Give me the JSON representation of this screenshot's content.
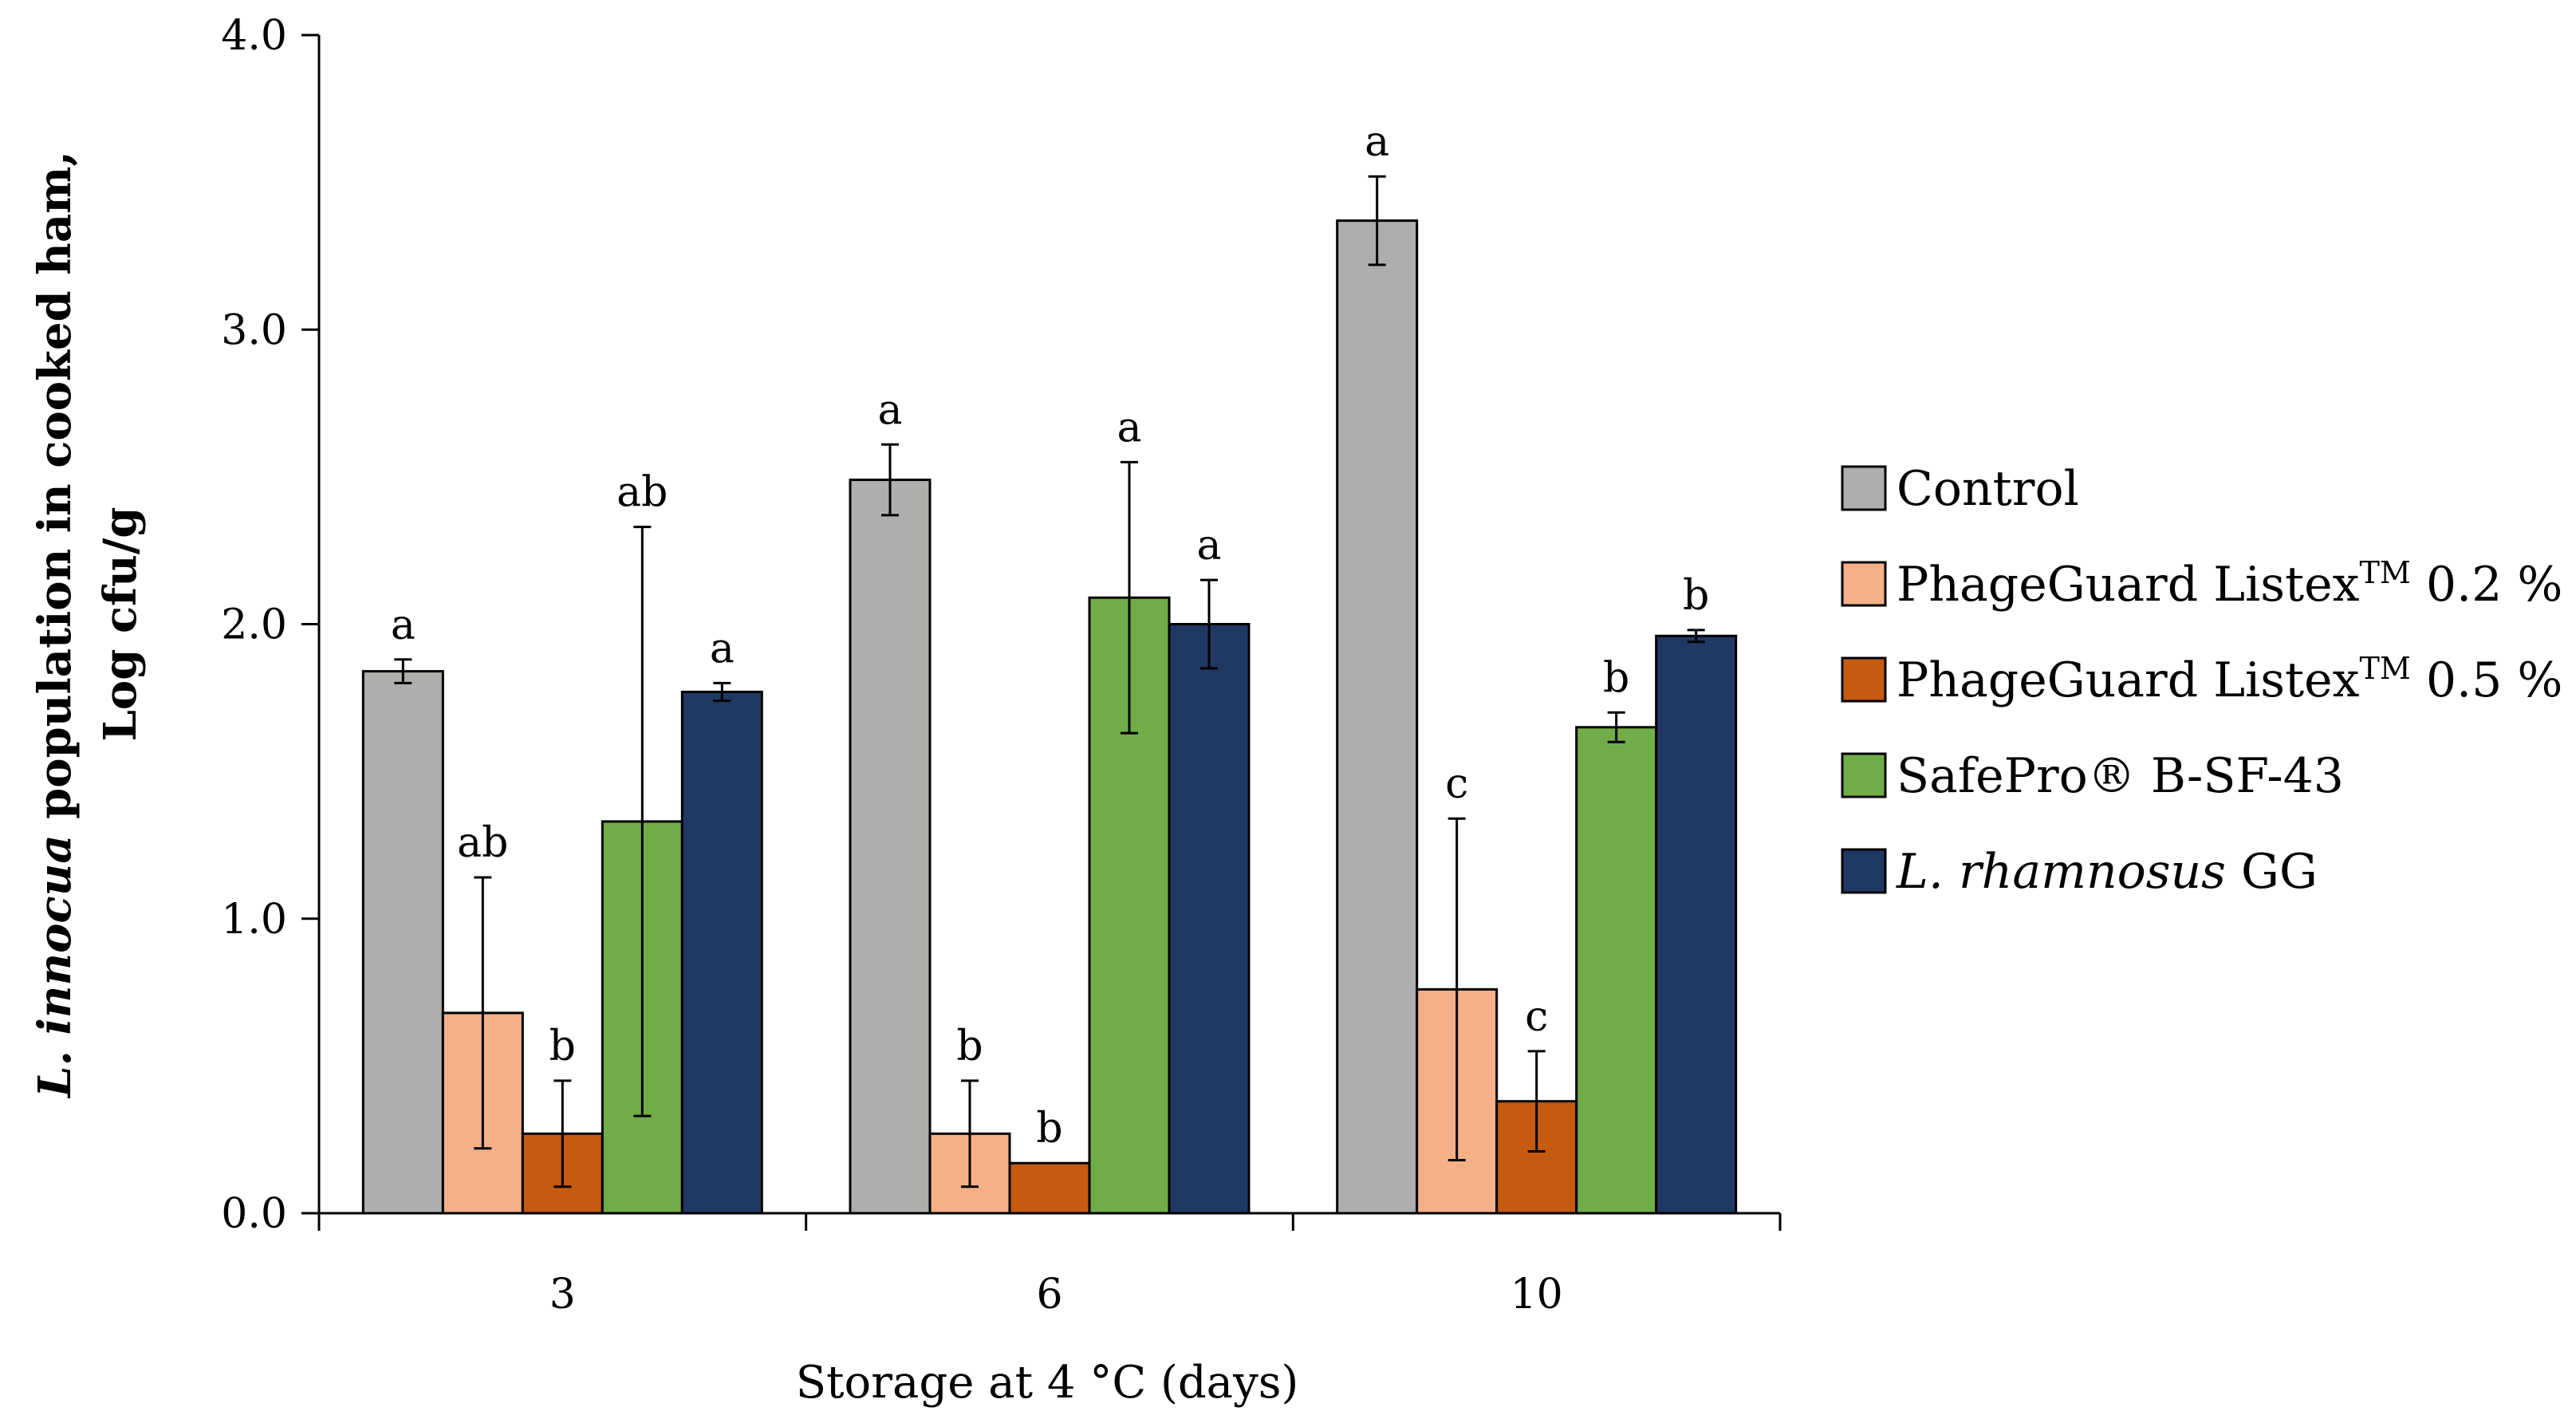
{
  "chart_data": {
    "type": "bar",
    "xlabel": "Storage at 4 °C (days)",
    "ylabel_lines": [
      {
        "italic": "L. innocua",
        "rest": " population in cooked ham,"
      },
      {
        "italic": "",
        "rest": "Log cfu/g"
      }
    ],
    "ylim": [
      0.0,
      4.0
    ],
    "yticks": [
      0.0,
      1.0,
      2.0,
      3.0,
      4.0
    ],
    "ytick_labels": [
      "0.0",
      "1.0",
      "2.0",
      "3.0",
      "4.0"
    ],
    "categories": [
      "3",
      "6",
      "10"
    ],
    "legend_position": "right",
    "series": [
      {
        "name": "Control",
        "legend_parts": [
          {
            "t": "Control",
            "s": "n"
          }
        ],
        "color": "#b0aeac",
        "values": [
          1.84,
          2.49,
          3.37
        ],
        "errors": [
          0.04,
          0.12,
          0.15
        ],
        "letters": [
          "a",
          "a",
          "a"
        ]
      },
      {
        "name": "PhageGuard Listex™ 0.2 %",
        "legend_parts": [
          {
            "t": "PhageGuard Listex",
            "s": "n"
          },
          {
            "t": "TM",
            "s": "sup"
          },
          {
            "t": " 0.2 %",
            "s": "n"
          }
        ],
        "color": "#f5b088",
        "values": [
          0.68,
          0.27,
          0.76
        ],
        "errors": [
          0.46,
          0.18,
          0.58
        ],
        "letters": [
          "ab",
          "b",
          "c"
        ]
      },
      {
        "name": "PhageGuard Listex™ 0.5 %",
        "legend_parts": [
          {
            "t": "PhageGuard Listex",
            "s": "n"
          },
          {
            "t": "TM",
            "s": "sup"
          },
          {
            "t": " 0.5 %",
            "s": "n"
          }
        ],
        "color": "#c55a11",
        "values": [
          0.27,
          0.17,
          0.38
        ],
        "errors": [
          0.18,
          0.0,
          0.17
        ],
        "letters": [
          "b",
          "b",
          "c"
        ]
      },
      {
        "name": "SafePro® B-SF-43",
        "legend_parts": [
          {
            "t": "SafePro® B-SF-43",
            "s": "n"
          }
        ],
        "color": "#70ad47",
        "values": [
          1.33,
          2.09,
          1.65
        ],
        "errors": [
          1.0,
          0.46,
          0.05
        ],
        "letters": [
          "ab",
          "a",
          "b"
        ]
      },
      {
        "name": "L. rhamnosus GG",
        "legend_parts": [
          {
            "t": "L. rhamnosus",
            "s": "i"
          },
          {
            "t": " GG",
            "s": "n"
          }
        ],
        "color": "#203864",
        "values": [
          1.77,
          2.0,
          1.96
        ],
        "errors": [
          0.03,
          0.15,
          0.02
        ],
        "letters": [
          "a",
          "a",
          "b"
        ]
      }
    ]
  }
}
